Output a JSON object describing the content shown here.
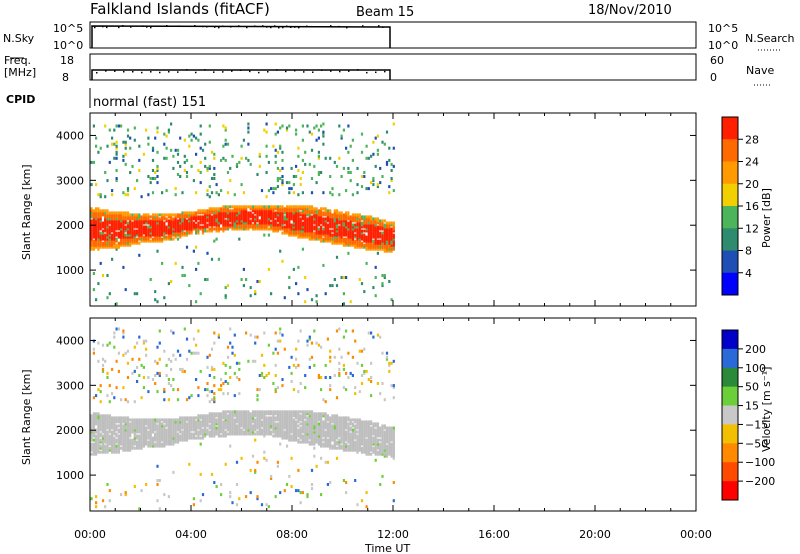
{
  "header": {
    "station": "Falkland Islands (fitACF)",
    "beam": "Beam 15",
    "date": "18/Nov/2010"
  },
  "nsky_panel": {
    "left_label": "N.Sky",
    "right_label": "N.Search",
    "left_ticks": [
      "10^5",
      "10^0"
    ],
    "right_ticks": [
      "10^5",
      "10^0"
    ]
  },
  "freq_panel": {
    "left_label_1": "Freq.",
    "left_label_2": "[MHz]",
    "right_label": "Nave",
    "left_ticks": [
      "18",
      "8"
    ],
    "right_ticks": [
      "60",
      "0"
    ]
  },
  "cpid_panel": {
    "label": "CPID",
    "mode": "normal (fast) 151"
  },
  "chart_data": [
    {
      "type": "heatmap",
      "name": "power",
      "ylabel": "Slant Range [km]",
      "ylim": [
        200,
        4500
      ],
      "yticks": [
        1000,
        2000,
        3000,
        4000
      ],
      "x_ticks": [
        "00:00",
        "04:00",
        "08:00",
        "12:00",
        "16:00",
        "20:00",
        "00:00"
      ],
      "xlim_hours": [
        0,
        24
      ],
      "data_end_hour": 12,
      "colorbar_label": "Power [dB]",
      "colorbar_ticks": [
        "4",
        "8",
        "12",
        "16",
        "20",
        "24",
        "28"
      ],
      "colorbar_colors": [
        "#0000ff",
        "#1f4fb4",
        "#2f8b6e",
        "#4cb45a",
        "#f2d000",
        "#ff9a00",
        "#ff6a00",
        "#ff2000"
      ],
      "main_band": {
        "hour": [
          0,
          1,
          2,
          3,
          4,
          5,
          6,
          7,
          8,
          9,
          10,
          11,
          12
        ],
        "km_low": [
          1450,
          1500,
          1600,
          1650,
          1800,
          1850,
          1900,
          1900,
          1750,
          1650,
          1550,
          1450,
          1400
        ],
        "km_high": [
          2400,
          2300,
          2250,
          2250,
          2300,
          2400,
          2450,
          2450,
          2450,
          2400,
          2300,
          2200,
          2050
        ]
      }
    },
    {
      "type": "heatmap",
      "name": "velocity",
      "ylabel": "Slant Range [km]",
      "ylim": [
        200,
        4500
      ],
      "yticks": [
        1000,
        2000,
        3000,
        4000
      ],
      "x_ticks": [
        "00:00",
        "04:00",
        "08:00",
        "12:00",
        "16:00",
        "20:00",
        "00:00"
      ],
      "xlabel": "Time UT",
      "xlim_hours": [
        0,
        24
      ],
      "data_end_hour": 12,
      "colorbar_label": "Velocity [m s⁻¹]",
      "colorbar_ticks": [
        "200",
        "100",
        "50",
        "15",
        "−15",
        "−50",
        "−100",
        "−200"
      ],
      "colorbar_colors": [
        "#0000c8",
        "#2a6ad8",
        "#2a8a3a",
        "#6ccf3a",
        "#c8c8c8",
        "#f2c000",
        "#ff8a00",
        "#ff4a00",
        "#ff0000"
      ],
      "ground_scatter_color": "#bebebe"
    }
  ]
}
